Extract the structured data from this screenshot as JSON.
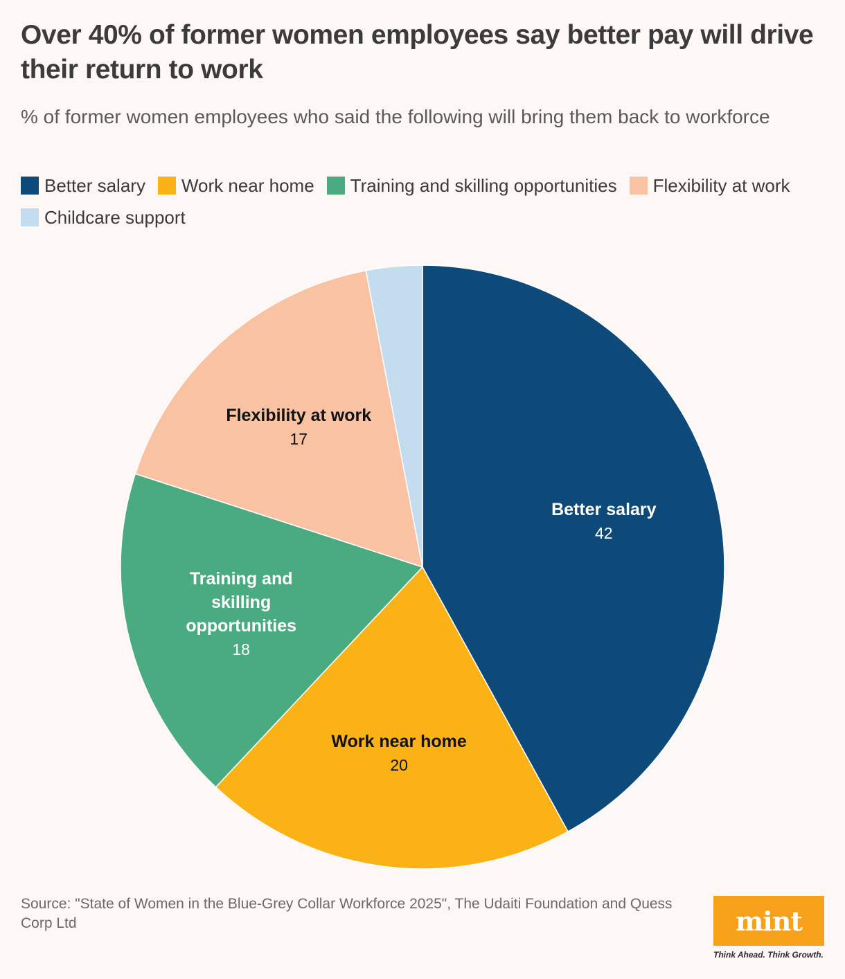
{
  "chart_data": {
    "type": "pie",
    "title": "Over 40% of former women employees say better pay will drive their return to work",
    "subtitle": "% of former women employees who said the following will bring them back to workforce",
    "unit": "%",
    "slices": [
      {
        "label": "Better salary",
        "value": 42,
        "color": "#0d4a7a",
        "show_label": true,
        "label_color": "#ffffff"
      },
      {
        "label": "Work near home",
        "value": 20,
        "color": "#fbb217",
        "show_label": true,
        "label_color": "#111111"
      },
      {
        "label": "Training and skilling opportunities",
        "label_lines": [
          "Training and",
          "skilling",
          "opportunities"
        ],
        "value": 18,
        "color": "#4aab81",
        "show_label": true,
        "label_color": "#ffffff"
      },
      {
        "label": "Flexibility at work",
        "value": 17,
        "color": "#f9c2a3",
        "show_label": true,
        "label_color": "#111111"
      },
      {
        "label": "Childcare support",
        "value": 3,
        "color": "#c3dcee",
        "show_label": false,
        "label_color": "#111111"
      }
    ],
    "legend_position": "top-left"
  },
  "source": "Source: \"State of Women in the Blue-Grey Collar Workforce 2025\", The Udaiti Foundation and Quess Corp Ltd",
  "branding": {
    "logo_text": "mint",
    "tagline": "Think Ahead. Think Growth.",
    "logo_color": "#f7a11a"
  }
}
